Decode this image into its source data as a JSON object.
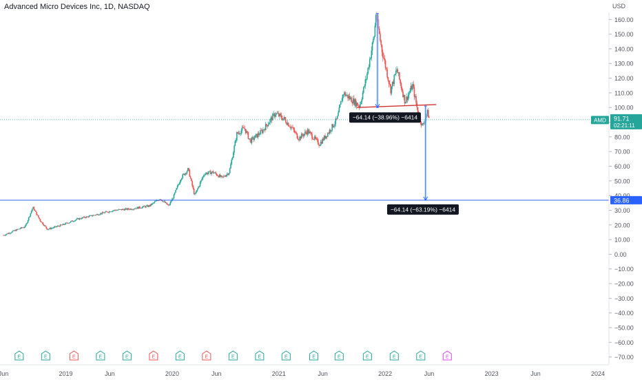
{
  "header": {
    "title": "Advanced Micro Devices Inc, 1D, NASDAQ",
    "currency": "USD"
  },
  "colors": {
    "up": "#26a69a",
    "down": "#ef5350",
    "axis_text": "#50535e",
    "hline": "#2962ff",
    "trendline": "#d32f2f",
    "measure_fill": "#bbdefb",
    "measure_line": "#2962ff",
    "earnings_green": "#26a69a",
    "earnings_red": "#ef5350",
    "earnings_future": "#e040fb"
  },
  "chart_data": {
    "type": "candlestick",
    "symbol": "AMD",
    "ylim": [
      -75,
      167
    ],
    "y_ticks": [
      160,
      150,
      140,
      130,
      120,
      110,
      100,
      90,
      80,
      70,
      60,
      50,
      40,
      30,
      20,
      10,
      0,
      -10,
      -20,
      -30,
      -40,
      -50,
      -60,
      -70
    ],
    "y_tick_labels": [
      "160.00",
      "150.00",
      "140.00",
      "130.00",
      "120.00",
      "110.00",
      "100.00",
      "90.00",
      "80.00",
      "70.00",
      "60.00",
      "50.00",
      "40.00",
      "30.00",
      "20.00",
      "10.00",
      "0.00",
      "−10.00",
      "−20.00",
      "−30.00",
      "−40.00",
      "−50.00",
      "−60.00",
      "−70.00"
    ],
    "x_labels": [
      "Jun",
      "2019",
      "Jun",
      "2020",
      "Jun",
      "2021",
      "Jun",
      "2022",
      "Jun",
      "2023",
      "Jun",
      "2024"
    ],
    "x_label_dates": [
      "2018-06-01",
      "2019-01-01",
      "2019-06-01",
      "2020-01-01",
      "2020-06-01",
      "2021-01-01",
      "2021-06-01",
      "2022-01-01",
      "2022-06-01",
      "2023-01-01",
      "2023-06-01",
      "2024-01-01"
    ],
    "price_path": [
      [
        "2018-06-01",
        13
      ],
      [
        "2018-08-15",
        19
      ],
      [
        "2018-09-10",
        32
      ],
      [
        "2018-10-05",
        23
      ],
      [
        "2018-10-30",
        17
      ],
      [
        "2018-12-20",
        20
      ],
      [
        "2019-02-10",
        24
      ],
      [
        "2019-04-15",
        27
      ],
      [
        "2019-06-15",
        30
      ],
      [
        "2019-08-15",
        31
      ],
      [
        "2019-10-15",
        33
      ],
      [
        "2019-11-20",
        38
      ],
      [
        "2019-12-20",
        33
      ],
      [
        "2020-01-05",
        39
      ],
      [
        "2020-01-31",
        52
      ],
      [
        "2020-02-25",
        58
      ],
      [
        "2020-03-18",
        40
      ],
      [
        "2020-04-20",
        55
      ],
      [
        "2020-05-20",
        56
      ],
      [
        "2020-06-20",
        52
      ],
      [
        "2020-07-15",
        56
      ],
      [
        "2020-08-10",
        82
      ],
      [
        "2020-09-05",
        86
      ],
      [
        "2020-09-25",
        77
      ],
      [
        "2020-11-05",
        84
      ],
      [
        "2020-12-20",
        96
      ],
      [
        "2021-01-20",
        92
      ],
      [
        "2021-02-15",
        86
      ],
      [
        "2021-03-10",
        79
      ],
      [
        "2021-04-10",
        84
      ],
      [
        "2021-05-20",
        75
      ],
      [
        "2021-06-20",
        83
      ],
      [
        "2021-07-20",
        92
      ],
      [
        "2021-08-10",
        110
      ],
      [
        "2021-09-10",
        105
      ],
      [
        "2021-10-05",
        101
      ],
      [
        "2021-10-28",
        120
      ],
      [
        "2021-11-25",
        150
      ],
      [
        "2021-11-30",
        164
      ],
      [
        "2021-12-20",
        140
      ],
      [
        "2022-01-20",
        112
      ],
      [
        "2022-02-10",
        126
      ],
      [
        "2022-03-10",
        104
      ],
      [
        "2022-04-05",
        115
      ],
      [
        "2022-04-25",
        95
      ],
      [
        "2022-05-10",
        87
      ],
      [
        "2022-05-25",
        97
      ],
      [
        "2022-06-03",
        91.71
      ]
    ],
    "last_price": "91.71",
    "last_price_countdown": "02:21:11",
    "horizontal_line": {
      "price": 36.86,
      "label": "36.86"
    },
    "trendline": {
      "from": [
        "2021-09-25",
        100
      ],
      "to": [
        "2022-06-25",
        102
      ]
    },
    "measurements": [
      {
        "from": [
          "2021-12-01",
          164
        ],
        "to": [
          "2021-12-01",
          100
        ],
        "x_end": "2021-12-10",
        "label": "−64.14 (−38.96%) −6414"
      },
      {
        "from": [
          "2022-05-15",
          101
        ],
        "to": [
          "2022-05-15",
          36.86
        ],
        "x_end": "2022-05-24",
        "label": "−64.14 (−63.19%) −6414"
      }
    ],
    "earnings": [
      {
        "date": "2018-07-25",
        "kind": "green",
        "label": "E"
      },
      {
        "date": "2018-10-24",
        "kind": "green",
        "label": "E"
      },
      {
        "date": "2019-01-29",
        "kind": "red",
        "label": "E"
      },
      {
        "date": "2019-04-30",
        "kind": "green",
        "label": "E"
      },
      {
        "date": "2019-07-30",
        "kind": "green",
        "label": "E"
      },
      {
        "date": "2019-10-29",
        "kind": "red",
        "label": "E"
      },
      {
        "date": "2020-01-28",
        "kind": "green",
        "label": "E"
      },
      {
        "date": "2020-04-28",
        "kind": "red",
        "label": "E"
      },
      {
        "date": "2020-07-28",
        "kind": "green",
        "label": "E"
      },
      {
        "date": "2020-10-27",
        "kind": "green",
        "label": "E"
      },
      {
        "date": "2021-01-26",
        "kind": "green",
        "label": "E"
      },
      {
        "date": "2021-05-01",
        "kind": "green",
        "label": "E"
      },
      {
        "date": "2021-07-27",
        "kind": "green",
        "label": "E"
      },
      {
        "date": "2021-11-01",
        "kind": "green",
        "label": "E"
      },
      {
        "date": "2022-02-01",
        "kind": "green",
        "label": "E"
      },
      {
        "date": "2022-05-03",
        "kind": "green",
        "label": "E"
      },
      {
        "date": "2022-08-02",
        "kind": "future",
        "label": "E"
      }
    ]
  }
}
